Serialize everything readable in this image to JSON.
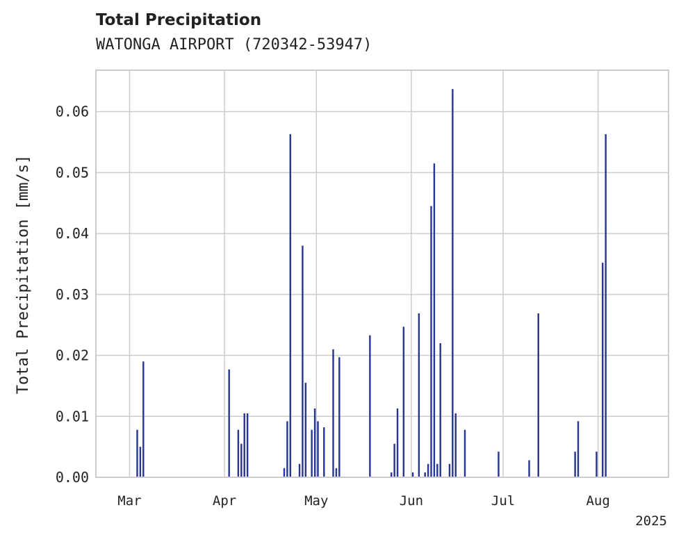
{
  "chart_data": {
    "type": "bar",
    "title": "Total Precipitation",
    "subtitle": "WATONGA AIRPORT (720342-53947)",
    "xlabel": "",
    "ylabel": "Total Precipitation [mm/s]",
    "ylim": [
      0,
      0.0668
    ],
    "xlim": [
      "2025-02-18",
      "2025-08-24"
    ],
    "grid": true,
    "series_color": "#283593",
    "x_ticks": [
      {
        "date": "2025-03-01",
        "label": "Mar"
      },
      {
        "date": "2025-04-01",
        "label": "Apr"
      },
      {
        "date": "2025-05-01",
        "label": "May"
      },
      {
        "date": "2025-06-01",
        "label": "Jun"
      },
      {
        "date": "2025-07-01",
        "label": "Jul"
      },
      {
        "date": "2025-08-01",
        "label": "Aug"
      }
    ],
    "x_year_label": "2025",
    "y_ticks": [
      {
        "value": 0,
        "label": "0.00"
      },
      {
        "value": 0.01,
        "label": "0.01"
      },
      {
        "value": 0.02,
        "label": "0.02"
      },
      {
        "value": 0.03,
        "label": "0.03"
      },
      {
        "value": 0.04,
        "label": "0.04"
      },
      {
        "value": 0.05,
        "label": "0.05"
      },
      {
        "value": 0.06,
        "label": "0.06"
      }
    ],
    "x": [
      "2025-03-03",
      "2025-03-04",
      "2025-03-05",
      "2025-04-02",
      "2025-04-05",
      "2025-04-06",
      "2025-04-07",
      "2025-04-08",
      "2025-04-20",
      "2025-04-21",
      "2025-04-22",
      "2025-04-25",
      "2025-04-26",
      "2025-04-27",
      "2025-04-29",
      "2025-04-30",
      "2025-05-01",
      "2025-05-03",
      "2025-05-06",
      "2025-05-07",
      "2025-05-08",
      "2025-05-18",
      "2025-05-25",
      "2025-05-26",
      "2025-05-27",
      "2025-05-29",
      "2025-06-01",
      "2025-06-03",
      "2025-06-05",
      "2025-06-06",
      "2025-06-07",
      "2025-06-08",
      "2025-06-09",
      "2025-06-10",
      "2025-06-13",
      "2025-06-14",
      "2025-06-15",
      "2025-06-18",
      "2025-06-29",
      "2025-07-09",
      "2025-07-12",
      "2025-07-24",
      "2025-07-25",
      "2025-07-31",
      "2025-08-02",
      "2025-08-03"
    ],
    "values": [
      0.0078,
      0.005,
      0.019,
      0.0177,
      0.0078,
      0.0055,
      0.0105,
      0.0105,
      0.0015,
      0.0092,
      0.0563,
      0.0022,
      0.038,
      0.0155,
      0.0078,
      0.0113,
      0.0092,
      0.0082,
      0.021,
      0.0015,
      0.0197,
      0.0233,
      0.0008,
      0.0055,
      0.0113,
      0.0247,
      0.0008,
      0.0269,
      0.0008,
      0.0022,
      0.0445,
      0.0515,
      0.0022,
      0.022,
      0.0022,
      0.0637,
      0.0105,
      0.0078,
      0.0042,
      0.0028,
      0.0269,
      0.0042,
      0.0092,
      0.0042,
      0.0352,
      0.0563
    ]
  }
}
